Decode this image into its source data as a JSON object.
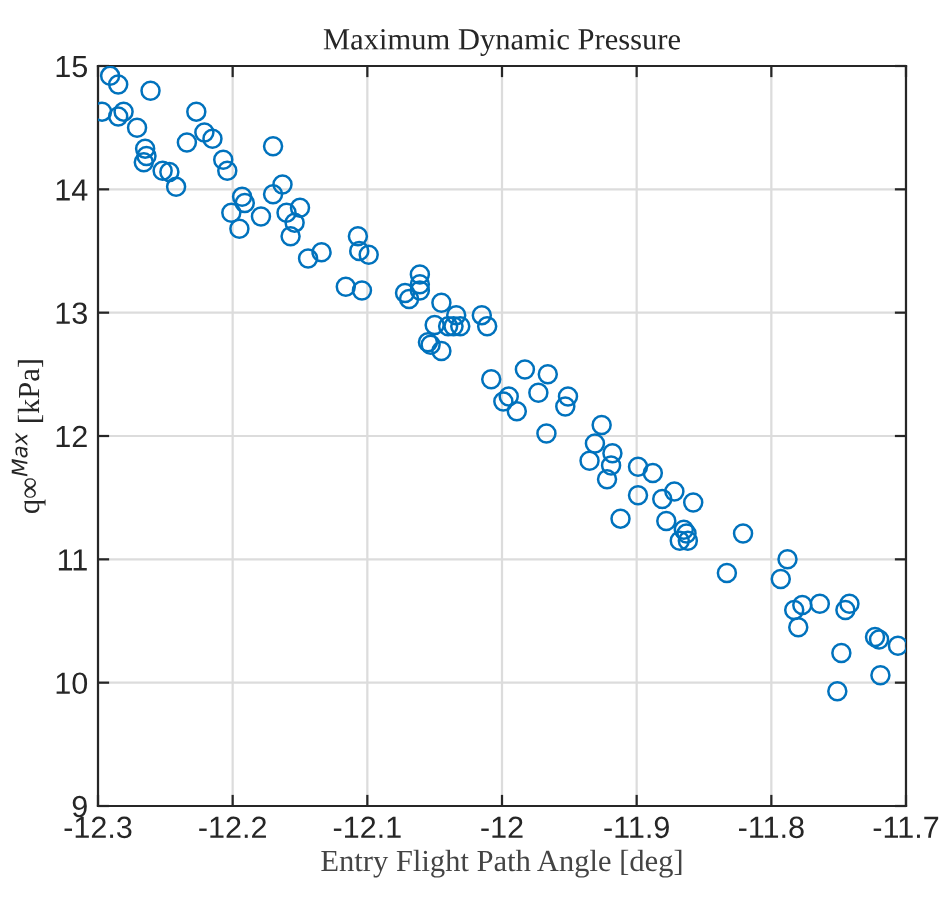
{
  "chart_data": {
    "type": "scatter",
    "title": "Maximum Dynamic Pressure",
    "xlabel": "Entry Flight Path Angle [deg]",
    "ylabel": "q∞$^{Max}$ [kPa]",
    "series": [
      {
        "color": "#0072bd",
        "x": [
          -12.291,
          -12.285,
          -12.297,
          -12.285,
          -12.281,
          -12.261,
          -12.271,
          -12.265,
          -12.264,
          -12.266,
          -12.252,
          -12.247,
          -12.242,
          -12.227,
          -12.221,
          -12.215,
          -12.234,
          -12.207,
          -12.204,
          -12.17,
          -12.193,
          -12.191,
          -12.201,
          -12.195,
          -12.179,
          -12.17,
          -12.163,
          -12.16,
          -12.15,
          -12.154,
          -12.157,
          -12.144,
          -12.134,
          -12.116,
          -12.104,
          -12.107,
          -12.106,
          -12.099,
          -12.072,
          -12.069,
          -12.061,
          -12.061,
          -12.061,
          -12.045,
          -12.05,
          -12.04,
          -12.034,
          -12.031,
          -12.036,
          -12.015,
          -12.011,
          -12.055,
          -12.053,
          -12.045,
          -12.008,
          -11.983,
          -11.966,
          -11.973,
          -11.995,
          -11.999,
          -11.989,
          -11.967,
          -11.951,
          -11.953,
          -11.926,
          -11.931,
          -11.918,
          -11.935,
          -11.919,
          -11.922,
          -11.899,
          -11.888,
          -11.899,
          -11.872,
          -11.881,
          -11.858,
          -11.912,
          -11.878,
          -11.865,
          -11.863,
          -11.868,
          -11.862,
          -11.833,
          -11.821,
          -11.788,
          -11.793,
          -11.783,
          -11.777,
          -11.764,
          -11.78,
          -11.745,
          -11.742,
          -11.723,
          -11.72,
          -11.706,
          -11.748,
          -11.719,
          -11.751
        ],
        "values": [
          14.92,
          14.85,
          14.63,
          14.59,
          14.63,
          14.8,
          14.5,
          14.33,
          14.27,
          14.22,
          14.15,
          14.14,
          14.02,
          14.63,
          14.46,
          14.41,
          14.38,
          14.24,
          14.15,
          14.35,
          13.94,
          13.89,
          13.81,
          13.68,
          13.78,
          13.96,
          14.04,
          13.81,
          13.85,
          13.73,
          13.62,
          13.44,
          13.49,
          13.21,
          13.18,
          13.62,
          13.5,
          13.47,
          13.16,
          13.11,
          13.31,
          13.23,
          13.18,
          13.08,
          12.9,
          12.89,
          12.98,
          12.89,
          12.89,
          12.98,
          12.89,
          12.76,
          12.74,
          12.69,
          12.46,
          12.54,
          12.5,
          12.35,
          12.32,
          12.28,
          12.2,
          12.02,
          12.32,
          12.24,
          12.09,
          11.94,
          11.86,
          11.8,
          11.76,
          11.65,
          11.75,
          11.7,
          11.52,
          11.55,
          11.49,
          11.46,
          11.33,
          11.31,
          11.24,
          11.21,
          11.15,
          11.15,
          10.89,
          11.21,
          11.0,
          10.84,
          10.59,
          10.63,
          10.64,
          10.45,
          10.59,
          10.64,
          10.37,
          10.35,
          10.3,
          10.24,
          10.06,
          9.93
        ]
      }
    ],
    "xlim": [
      -12.3,
      -11.7
    ],
    "xticks": [
      -12.3,
      -12.2,
      -12.1,
      -12,
      -11.9,
      -11.8,
      -11.7
    ],
    "ylim": [
      9,
      15
    ],
    "yticks": [
      9,
      10,
      11,
      12,
      13,
      14,
      15
    ],
    "grid": true,
    "marker": "circle"
  }
}
